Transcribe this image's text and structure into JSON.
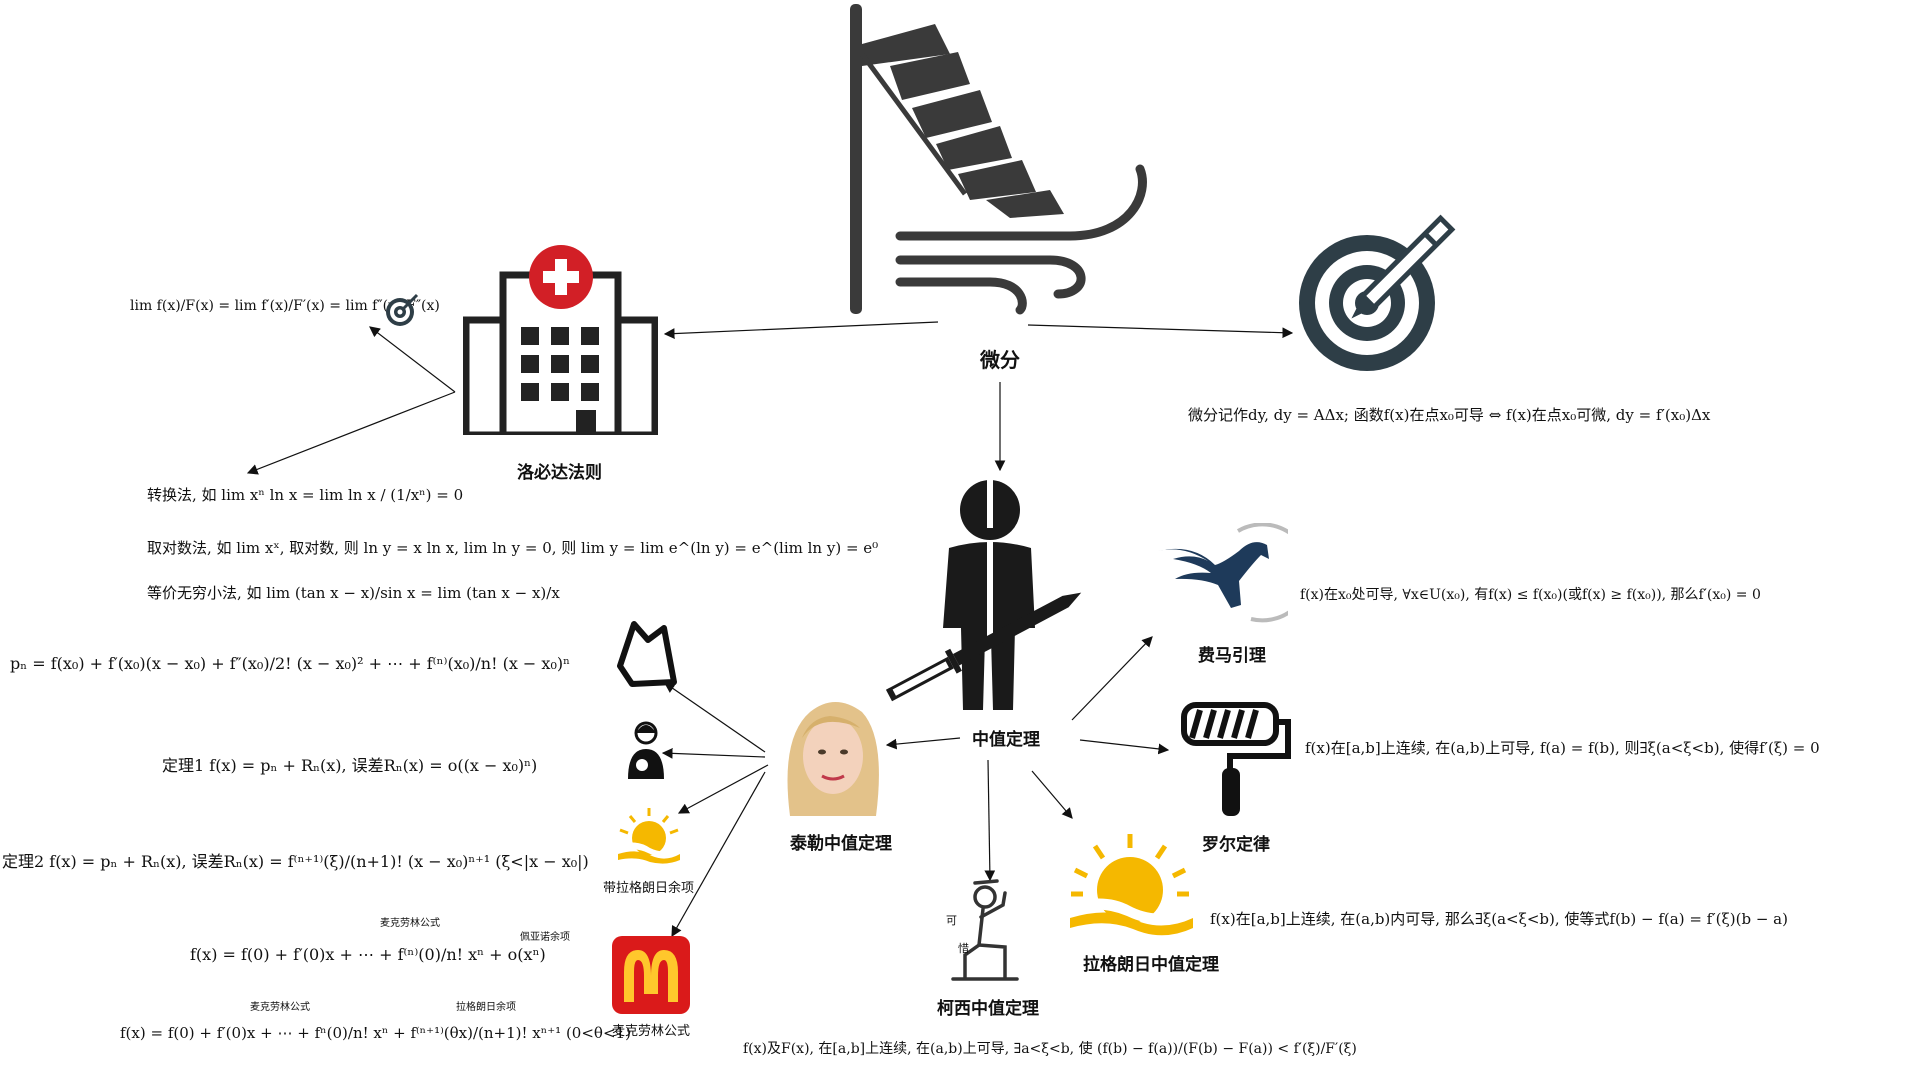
{
  "nodes": {
    "center": "微分",
    "lhopital": "洛必达法则",
    "mvt": "中值定理",
    "fermat": "费马引理",
    "rolle": "罗尔定律",
    "lagrange": "拉格朗日中值定理",
    "cauchy": "柯西中值定理",
    "taylor": "泰勒中值定理",
    "lagrange_remainder": "带拉格朗日余项",
    "maclaurin": "麦克劳林公式"
  },
  "formulas": {
    "differential": "微分记作dy, dy = AΔx; 函数f(x)在点x₀可导 ⇔ f(x)在点x₀可微, dy = f′(x₀)Δx",
    "lhopital_chain": "lim f(x)/F(x) = lim f′(x)/F′(x) = lim f″(x)/F″(x)",
    "transform": "转换法, 如 lim xⁿ ln x = lim ln x / (1/xⁿ) = 0",
    "log_method": "取对数法, 如 lim xˣ, 取对数, 则 ln y = x ln x, lim ln y = 0, 则 lim y = lim e^(ln y) = e^(lim ln y) = e⁰",
    "equiv_inf": "等价无穷小法, 如 lim (tan x − x)/sin x = lim (tan x − x)/x",
    "fermat": "f(x)在x₀处可导, ∀x∈U(x₀), 有f(x) ≤ f(x₀)(或f(x) ≥ f(x₀)), 那么f′(x₀) = 0",
    "rolle": "f(x)在[a,b]上连续, 在(a,b)上可导, f(a) = f(b), 则∃ξ(a<ξ<b), 使得f′(ξ) = 0",
    "lagrange": "f(x)在[a,b]上连续, 在(a,b)内可导, 那么∃ξ(a<ξ<b), 使等式f(b) − f(a) = f′(ξ)(b − a)",
    "cauchy": "f(x)及F(x), 在[a,b]上连续, 在(a,b)上可导, ∃a<ξ<b, 使 (f(b) − f(a))/(F(b) − F(a)) < f′(ξ)/F′(ξ)",
    "taylor_poly": "pₙ = f(x₀) + f′(x₀)(x − x₀) + f″(x₀)/2! (x − x₀)² + ⋯ + f⁽ⁿ⁾(x₀)/n! (x − x₀)ⁿ",
    "theorem1": "定理1 f(x) = pₙ + Rₙ(x), 误差Rₙ(x) = o((x − x₀)ⁿ)",
    "theorem2": "定理2 f(x) = pₙ + Rₙ(x), 误差Rₙ(x) = f⁽ⁿ⁺¹⁾(ξ)/(n+1)! (x − x₀)ⁿ⁺¹ (ξ<|x − x₀|)",
    "maclaurin1": "f(x) = f(0) + f′(0)x + ⋯ + f⁽ⁿ⁾(0)/n! xⁿ + o(xⁿ)",
    "maclaurin2": "f(x) = f(0) + f′(0)x + ⋯ + fⁿ(0)/n! xⁿ + f⁽ⁿ⁺¹⁾(θx)/(n+1)! xⁿ⁺¹ (0<θ<1)"
  },
  "annotations": {
    "maclaurin_a": "麦克劳林公式",
    "peano": "佩亚诺余项",
    "maclaurin_b": "麦克劳林公式",
    "lagrange_rem": "拉格朗日余项",
    "ke": "可",
    "xi": "惜"
  },
  "icons": [
    "windsock-icon",
    "target-pencil-icon",
    "hospital-icon",
    "small-target-icon",
    "ninja-icon",
    "pegasus-icon",
    "paint-roller-icon",
    "sun-icon",
    "person-praying-icon",
    "avatar-portrait-icon",
    "crown-icon",
    "mother-baby-icon",
    "small-sun-icon",
    "mcdonalds-logo-icon"
  ],
  "colors": {
    "hospital_cross": "#d21f26",
    "sun": "#f5b800",
    "mcd_red": "#da1a1a",
    "mcd_yellow": "#ffc72c",
    "target": "#2e3e47"
  }
}
